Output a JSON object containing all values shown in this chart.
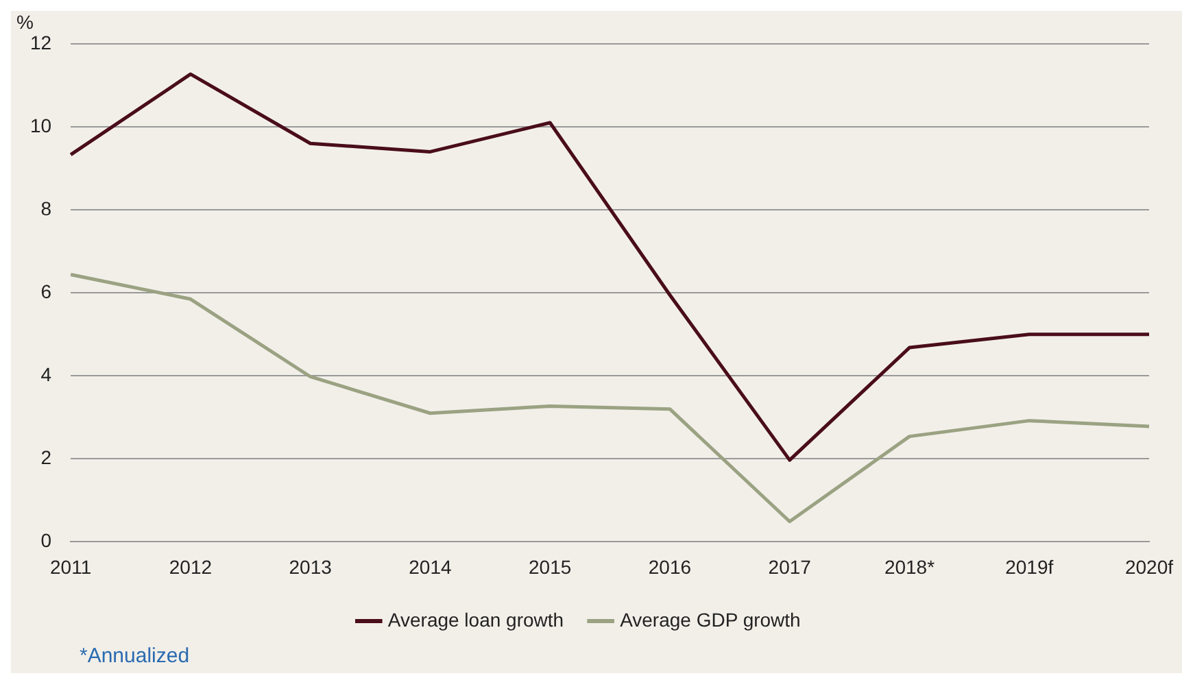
{
  "chart_data": {
    "type": "line",
    "ylabel": "%",
    "categories": [
      "2011",
      "2012",
      "2013",
      "2014",
      "2015",
      "2016",
      "2017",
      "2018*",
      "2019f",
      "2020f"
    ],
    "series": [
      {
        "name": "Average loan growth",
        "color": "#4a0d1a",
        "values": [
          9.33,
          11.27,
          9.6,
          9.4,
          10.1,
          5.95,
          1.97,
          4.68,
          5.0,
          5.0
        ]
      },
      {
        "name": "Average GDP growth",
        "color": "#9aa282",
        "values": [
          6.44,
          5.85,
          3.98,
          3.1,
          3.27,
          3.2,
          0.49,
          2.54,
          2.92,
          2.78
        ]
      }
    ],
    "ylim": [
      0,
      12
    ],
    "yticks": [
      0,
      2,
      4,
      6,
      8,
      10,
      12
    ],
    "grid": "y",
    "legend": "bottom",
    "marker": "none",
    "line_style": "solid",
    "annotations": [
      "*Annualized"
    ]
  }
}
